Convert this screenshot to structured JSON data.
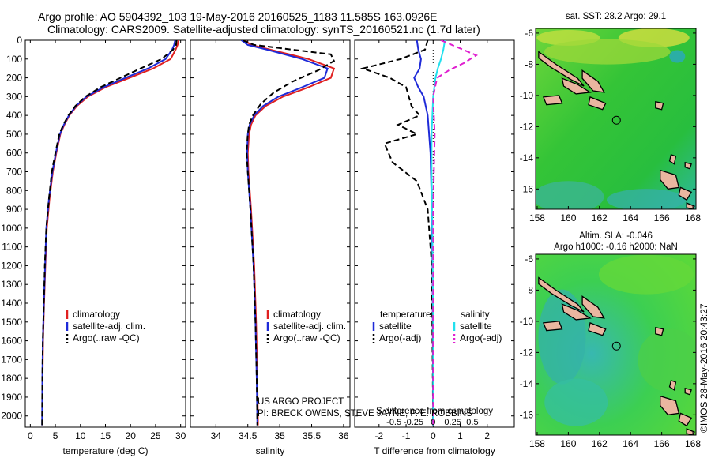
{
  "header": {
    "line1": "Argo profile: AO 5904392_103 19-May-2016 20160525_1183 11.585S 163.0926E",
    "line2": "Climatology: CARS2009. Satellite-adjusted climatology: synTS_20160521.nc (1.7d later)"
  },
  "credit": {
    "line1": "US ARGO PROJECT",
    "line2": "PI: BRECK OWENS, STEVE JAYNE, P. E. ROBBINS"
  },
  "side_stamp": "©IMOS 28-May-2016 20:43:27",
  "colors": {
    "climatology": "#e02020",
    "satellite": "#1e2ad8",
    "argo": "#000000",
    "satellite_salinity": "#22e0ee",
    "argo_salinity": "#e020d0",
    "land": "#eab6a0",
    "ocean_sst": "#2bc832",
    "ocean_sla": "#3cd23c"
  },
  "chart_data": [
    {
      "type": "line",
      "panel": "temperature",
      "xlabel": "temperature (deg C)",
      "ylabel": "",
      "xlim": [
        -1,
        31
      ],
      "ylim": [
        2060,
        0
      ],
      "xticks": [
        0,
        5,
        10,
        15,
        20,
        25,
        30
      ],
      "yticks": [
        0,
        100,
        200,
        300,
        400,
        500,
        600,
        700,
        800,
        900,
        1000,
        1100,
        1200,
        1300,
        1400,
        1500,
        1600,
        1700,
        1800,
        1900,
        2000
      ],
      "legend": [
        "climatology",
        "satellite-adj. clim.",
        "Argo(..raw -QC)"
      ],
      "legend_position": "lower-center",
      "series": [
        {
          "name": "climatology",
          "style": "solid",
          "color_key": "climatology",
          "x": [
            29.6,
            29.4,
            29.0,
            28.0,
            24.5,
            19.8,
            15.0,
            11.5,
            9.3,
            7.8,
            6.8,
            6.0,
            5.2,
            4.5,
            3.8,
            3.3,
            3.0,
            2.75,
            2.55,
            2.45,
            2.4
          ],
          "y": [
            0,
            25,
            50,
            100,
            150,
            200,
            250,
            300,
            350,
            400,
            450,
            500,
            600,
            700,
            850,
            1000,
            1200,
            1400,
            1600,
            1800,
            2050
          ]
        },
        {
          "name": "satellite-adj. clim.",
          "style": "solid",
          "color_key": "satellite",
          "x": [
            28.9,
            28.7,
            28.3,
            27.0,
            23.5,
            19.0,
            14.6,
            11.2,
            9.1,
            7.7,
            6.7,
            5.9,
            5.1,
            4.4,
            3.7,
            3.2,
            2.95,
            2.7,
            2.5,
            2.4,
            2.35
          ],
          "y": [
            0,
            25,
            50,
            100,
            150,
            200,
            250,
            300,
            350,
            400,
            450,
            500,
            600,
            700,
            850,
            1000,
            1200,
            1400,
            1600,
            1800,
            2050
          ]
        },
        {
          "name": "Argo(..raw -QC)",
          "style": "dashed",
          "color_key": "argo",
          "x": [
            29.2,
            29.1,
            28.5,
            26.2,
            22.0,
            18.0,
            14.0,
            11.0,
            9.0,
            7.6,
            6.6,
            5.8,
            5.0,
            4.3,
            3.7,
            3.2,
            2.9,
            2.7,
            2.5,
            2.4,
            2.35
          ],
          "y": [
            0,
            25,
            50,
            100,
            150,
            200,
            250,
            300,
            350,
            400,
            450,
            500,
            600,
            700,
            850,
            1000,
            1200,
            1400,
            1600,
            1800,
            2050
          ]
        }
      ]
    },
    {
      "type": "line",
      "panel": "salinity",
      "xlabel": "salinity",
      "ylabel": "",
      "xlim": [
        33.6,
        36.1
      ],
      "ylim": [
        2060,
        0
      ],
      "xticks": [
        34,
        34.5,
        35,
        35.5,
        36
      ],
      "xtick_labels": [
        "34",
        "34.5",
        "35",
        "35.5",
        "36"
      ],
      "legend": [
        "climatology",
        "satellite-adj. clim.",
        "Argo(..raw -QC)"
      ],
      "legend_position": "lower-center",
      "series": [
        {
          "name": "climatology",
          "style": "solid",
          "color_key": "climatology",
          "x": [
            34.45,
            34.55,
            34.85,
            35.45,
            35.85,
            35.8,
            35.45,
            35.05,
            34.78,
            34.62,
            34.55,
            34.52,
            34.5,
            34.51,
            34.55,
            34.6,
            34.63,
            34.65,
            34.66
          ],
          "y": [
            0,
            25,
            50,
            100,
            150,
            200,
            250,
            300,
            350,
            400,
            450,
            500,
            600,
            700,
            900,
            1200,
            1500,
            1800,
            2050
          ]
        },
        {
          "name": "satellite-adj. clim.",
          "style": "solid",
          "color_key": "satellite",
          "x": [
            34.4,
            34.5,
            34.8,
            35.35,
            35.75,
            35.7,
            35.35,
            34.98,
            34.74,
            34.6,
            34.53,
            34.5,
            34.49,
            34.5,
            34.54,
            34.59,
            34.62,
            34.64,
            34.65
          ],
          "y": [
            0,
            25,
            50,
            100,
            150,
            200,
            250,
            300,
            350,
            400,
            450,
            500,
            600,
            700,
            900,
            1200,
            1500,
            1800,
            2050
          ]
        },
        {
          "name": "Argo(..raw -QC)",
          "style": "dashed",
          "color_key": "argo",
          "x": [
            34.42,
            34.6,
            35.2,
            35.8,
            35.85,
            35.6,
            35.2,
            34.9,
            34.7,
            34.58,
            34.52,
            34.5,
            34.48,
            34.5,
            34.54,
            34.59,
            34.62,
            34.64,
            34.65
          ],
          "y": [
            0,
            25,
            50,
            75,
            110,
            160,
            220,
            280,
            340,
            400,
            450,
            500,
            600,
            700,
            900,
            1200,
            1500,
            1800,
            2050
          ]
        }
      ]
    },
    {
      "type": "line",
      "panel": "difference",
      "xlabel": "T difference from climatology",
      "top_xlabel": "S difference from climatology",
      "xlim": [
        -2.9,
        3.0
      ],
      "ylim": [
        2060,
        0
      ],
      "xticks": [
        -2,
        -1,
        0,
        1,
        2
      ],
      "xtick_labels": [
        "-2",
        "-1",
        "0",
        "1",
        "2"
      ],
      "top_xticks": [
        -0.5,
        -0.25,
        0,
        0.25,
        0.5
      ],
      "top_xtick_labels": [
        "-0.5",
        "-0.25",
        "0",
        "0.25",
        "0.5"
      ],
      "legend_temperature": {
        "title": "temperature",
        "items": [
          "satellite",
          "Argo(-adj)"
        ]
      },
      "legend_salinity": {
        "title": "salinity",
        "items": [
          "satellite",
          "Argo(-adj)"
        ]
      },
      "series": [
        {
          "name": "satellite",
          "group": "temperature",
          "style": "solid",
          "color_key": "satellite",
          "x_axis": "T",
          "x": [
            -0.6,
            -0.55,
            -0.45,
            -0.5,
            -0.7,
            -0.55,
            -0.35,
            -0.2,
            -0.1,
            -0.05,
            -0.02,
            0.0
          ],
          "y": [
            0,
            50,
            100,
            150,
            200,
            250,
            300,
            400,
            600,
            900,
            1300,
            2050
          ]
        },
        {
          "name": "Argo(-adj)",
          "group": "temperature",
          "style": "dashed",
          "color_key": "argo",
          "x_axis": "T",
          "x": [
            -0.2,
            -0.3,
            -1.2,
            -2.6,
            -1.6,
            -1.0,
            -0.9,
            -0.8,
            -0.5,
            -1.3,
            -0.6,
            -1.8,
            -1.5,
            -0.6,
            -0.2,
            -0.05,
            0.0
          ],
          "y": [
            0,
            50,
            100,
            150,
            200,
            250,
            300,
            350,
            400,
            450,
            500,
            550,
            650,
            750,
            900,
            1200,
            2050
          ]
        },
        {
          "name": "satellite",
          "group": "salinity",
          "style": "solid",
          "color_key": "satellite_salinity",
          "x_axis": "S",
          "x": [
            0.15,
            0.13,
            0.1,
            0.06,
            0.03,
            0.0,
            -0.02,
            -0.02,
            -0.01,
            0.0,
            0.0
          ],
          "y": [
            0,
            50,
            100,
            150,
            200,
            300,
            500,
            700,
            1000,
            1500,
            2050
          ]
        },
        {
          "name": "Argo(-adj)",
          "group": "salinity",
          "style": "dashed",
          "color_key": "argo_salinity",
          "x_axis": "S",
          "x": [
            0.1,
            0.55,
            0.4,
            0.2,
            0.05,
            0.0,
            0.02,
            0.0,
            0.0
          ],
          "y": [
            0,
            80,
            120,
            160,
            200,
            300,
            500,
            900,
            2050
          ]
        }
      ]
    }
  ],
  "maps": [
    {
      "panel": "sst",
      "title": "sat. SST: 28.2 Argo: 29.1",
      "title2": "",
      "xlim": [
        157.9,
        168.2
      ],
      "ylim": [
        -17.3,
        -5.7
      ],
      "xticks": [
        158,
        160,
        162,
        164,
        166,
        168
      ],
      "yticks": [
        -6,
        -8,
        -10,
        -12,
        -14,
        -16
      ],
      "float_position": {
        "lon": 163.09,
        "lat": -11.59
      }
    },
    {
      "panel": "sla",
      "title": "Altim. SLA: -0.046",
      "title2": "Argo h1000: -0.16 h2000: NaN",
      "xlim": [
        157.9,
        168.2
      ],
      "ylim": [
        -17.3,
        -5.7
      ],
      "xticks": [
        158,
        160,
        162,
        164,
        166,
        168
      ],
      "yticks": [
        -6,
        -8,
        -10,
        -12,
        -14,
        -16
      ],
      "float_position": {
        "lon": 163.09,
        "lat": -11.59
      }
    }
  ]
}
